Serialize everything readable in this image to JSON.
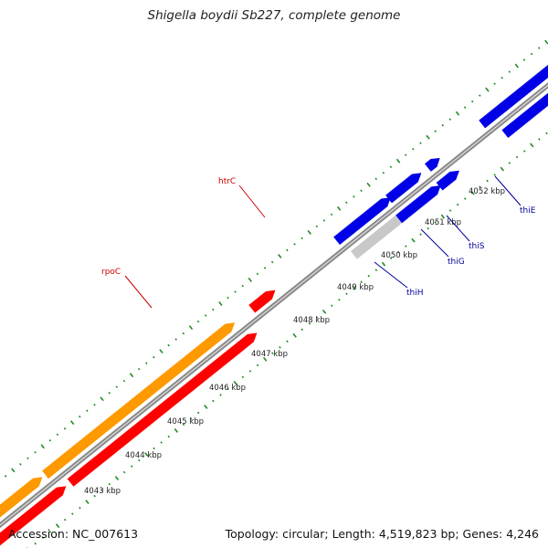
{
  "title": "Shigella boydii Sb227, complete genome",
  "footer": {
    "accession": "Accession: NC_007613",
    "summary": "Topology: circular; Length: 4,519,823 bp; Genes: 4,246"
  },
  "colors": {
    "backbone": "#8c8c8c",
    "tick": "#228b22",
    "orange_gene": "#ff9900",
    "red_gene": "#ff0000",
    "blue_gene": "#0000e6",
    "gray_gene": "#c8c8c8",
    "red_label": "#cc0000",
    "blue_label": "#000099"
  },
  "scale": {
    "labels": [
      {
        "id": "4043",
        "text": "4043 kbp"
      },
      {
        "id": "4044",
        "text": "4044 kbp"
      },
      {
        "id": "4045",
        "text": "4045 kbp"
      },
      {
        "id": "4046",
        "text": "4046 kbp"
      },
      {
        "id": "4047",
        "text": "4047 kbp"
      },
      {
        "id": "4048",
        "text": "4048 kbp"
      },
      {
        "id": "4049",
        "text": "4049 kbp"
      },
      {
        "id": "4050",
        "text": "4050 kbp"
      },
      {
        "id": "4051",
        "text": "4051 kbp"
      },
      {
        "id": "4052",
        "text": "4052 kbp"
      }
    ]
  },
  "genes": [
    {
      "id": "rpoC",
      "label": "rpoC",
      "color_key": "red_label"
    },
    {
      "id": "htrC",
      "label": "htrC",
      "color_key": "red_label"
    },
    {
      "id": "thiH",
      "label": "thiH",
      "color_key": "blue_label"
    },
    {
      "id": "thiG",
      "label": "thiG",
      "color_key": "blue_label"
    },
    {
      "id": "thiS",
      "label": "thiS",
      "color_key": "blue_label"
    },
    {
      "id": "thiE",
      "label": "thiE",
      "color_key": "blue_label"
    }
  ]
}
